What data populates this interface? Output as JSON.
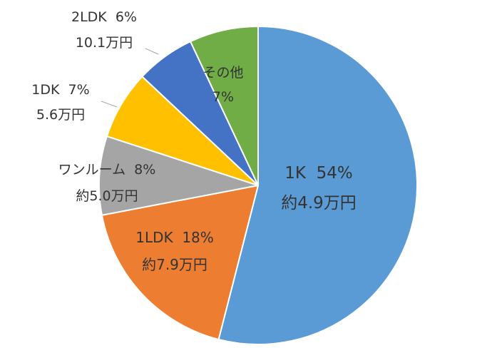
{
  "chart_data": {
    "type": "pie",
    "slices": [
      {
        "name": "1K",
        "percent_label": "54%",
        "rent": "約4.9万円",
        "value": 54,
        "color": "#5b9bd5"
      },
      {
        "name": "1LDK",
        "percent_label": "18%",
        "rent": "約7.9万円",
        "value": 18,
        "color": "#ed7d31"
      },
      {
        "name": "ワンルーム",
        "percent_label": "8%",
        "rent": "約5.0万円",
        "value": 8,
        "color": "#a5a5a5"
      },
      {
        "name": "1DK",
        "percent_label": "7%",
        "rent": "5.6万円",
        "value": 7,
        "color": "#ffc000"
      },
      {
        "name": "2LDK",
        "percent_label": "6%",
        "rent": "10.1万円",
        "value": 6,
        "color": "#4472c4"
      },
      {
        "name": "その他",
        "percent_label": "7%",
        "rent": "",
        "value": 7,
        "color": "#70ad47"
      }
    ],
    "start_angle_deg": 0,
    "direction": "clockwise"
  }
}
